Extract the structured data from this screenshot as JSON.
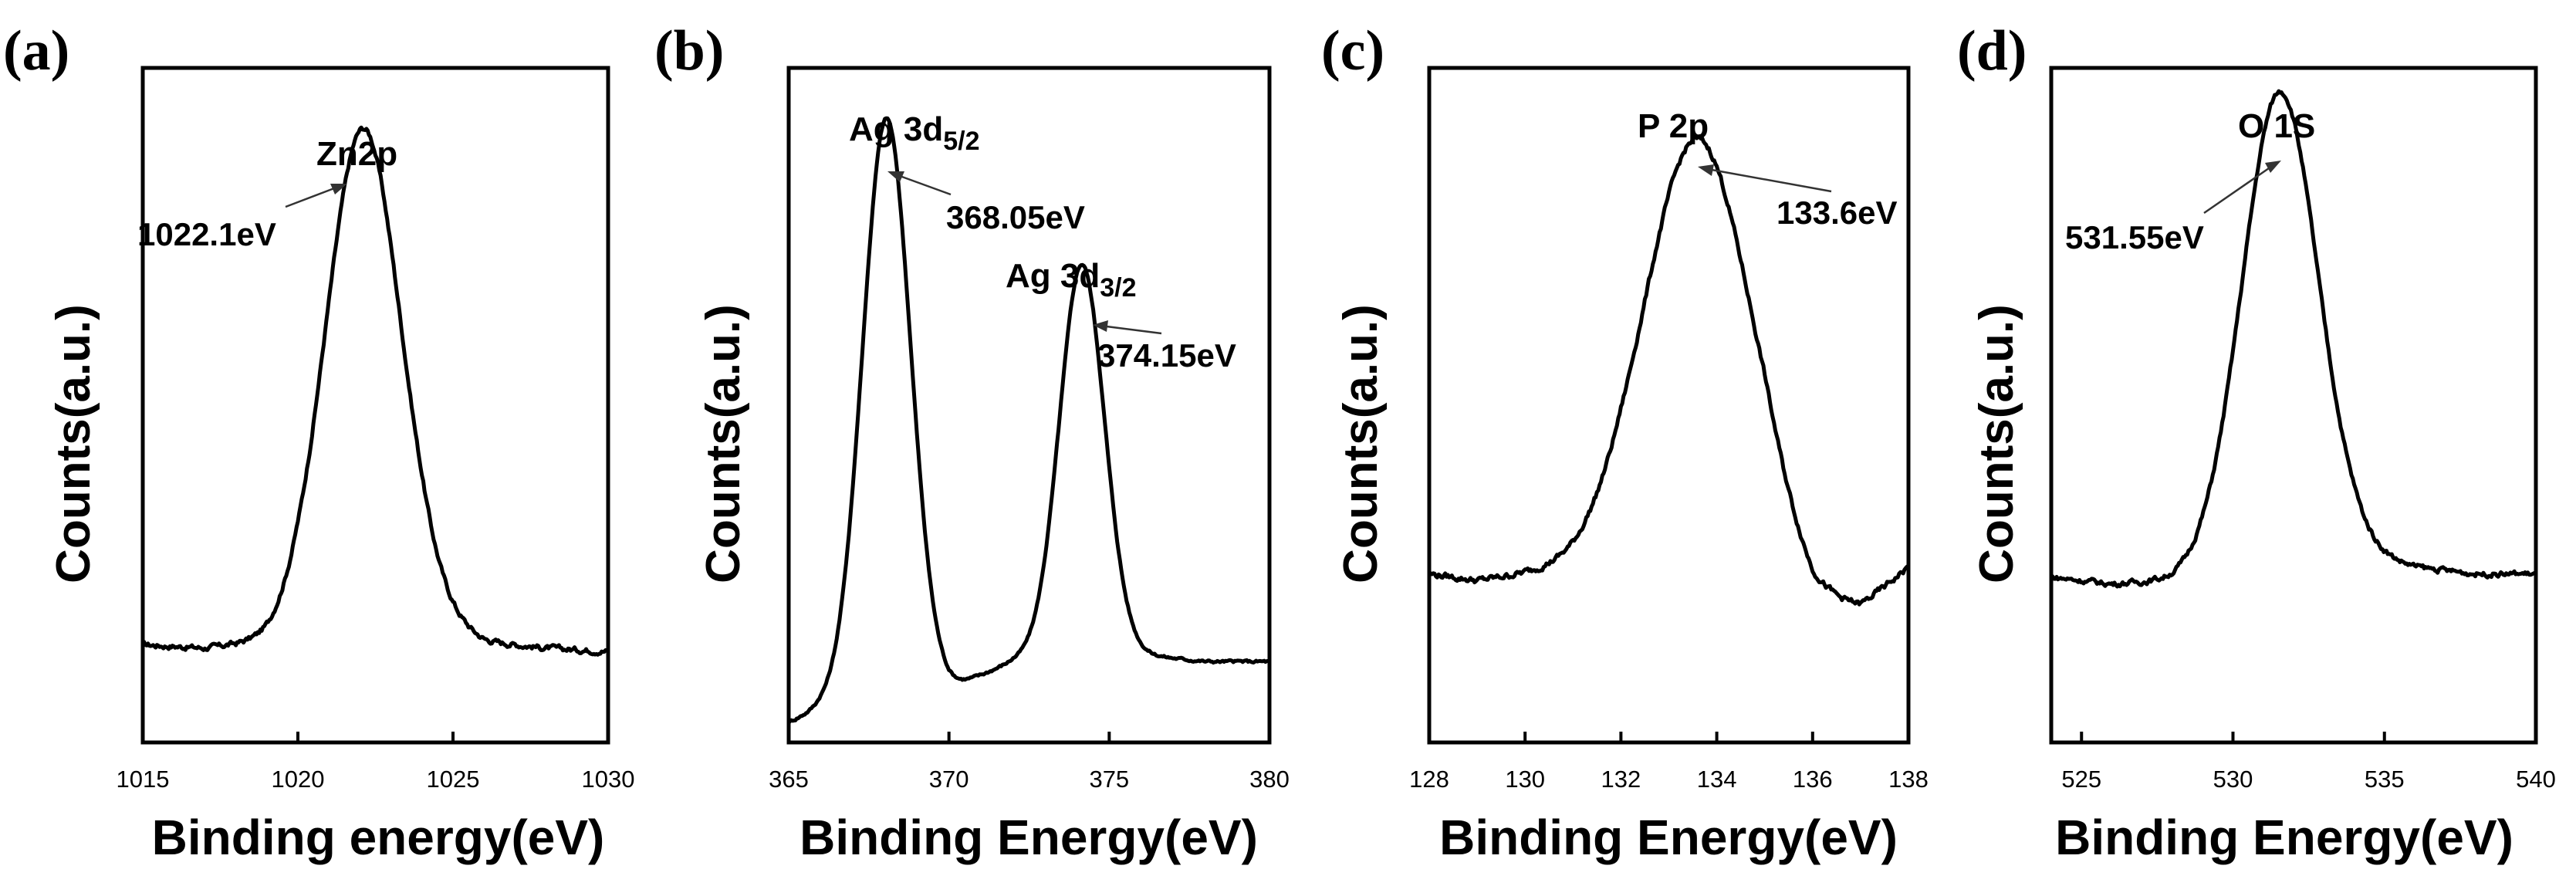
{
  "chart_data": [
    {
      "type": "line",
      "panel_label": "(a)",
      "xlabel": "Binding energy(eV)",
      "ylabel": "Counts(a.u.)",
      "xlim": [
        1015,
        1030
      ],
      "ylim": [
        0,
        1
      ],
      "xticks": [
        1015,
        1020,
        1025,
        1030
      ],
      "xtick_labels": [
        "1015",
        "1020",
        "1025",
        "1030"
      ],
      "series": [
        {
          "name": "Zn 2p",
          "background": [
            [
              1015,
              0.145
            ],
            [
              1017,
              0.14
            ],
            [
              1019,
              0.15
            ],
            [
              1020,
              0.17
            ],
            [
              1024,
              0.19
            ],
            [
              1026,
              0.15
            ],
            [
              1028,
              0.14
            ],
            [
              1030,
              0.135
            ]
          ],
          "noise": 0.008,
          "peaks": [
            {
              "center": 1022.1,
              "height": 0.73,
              "width": 1.2
            }
          ]
        }
      ],
      "annotations": [
        {
          "label": "Zn2p",
          "value": "1022.1eV",
          "x": 1022.1
        }
      ]
    },
    {
      "type": "line",
      "panel_label": "(b)",
      "xlabel": "Binding Energy(eV)",
      "ylabel": "Counts(a.u.)",
      "xlim": [
        365,
        380
      ],
      "ylim": [
        0,
        1
      ],
      "xticks": [
        365,
        370,
        375,
        380
      ],
      "xtick_labels": [
        "365",
        "370",
        "375",
        "380"
      ],
      "series": [
        {
          "name": "Ag 3d",
          "background": [
            [
              365,
              0.03
            ],
            [
              366,
              0.05
            ],
            [
              370,
              0.08
            ],
            [
              372,
              0.12
            ],
            [
              374,
              0.14
            ],
            [
              376,
              0.13
            ],
            [
              378,
              0.12
            ],
            [
              380,
              0.12
            ]
          ],
          "noise": 0.004,
          "peaks": [
            {
              "center": 368.05,
              "height": 0.86,
              "width": 0.75
            },
            {
              "center": 374.15,
              "height": 0.57,
              "width": 0.7
            }
          ]
        }
      ],
      "annotations": [
        {
          "label_main": "Ag 3d",
          "label_sub": "5/2",
          "value": "368.05eV",
          "x": 368.05
        },
        {
          "label_main": "Ag 3d",
          "label_sub": "3/2",
          "value": "374.15eV",
          "x": 374.15
        }
      ]
    },
    {
      "type": "line",
      "panel_label": "(c)",
      "xlabel": "Binding Energy(eV)",
      "ylabel": "Counts(a.u.)",
      "xlim": [
        128,
        138
      ],
      "ylim": [
        0,
        1
      ],
      "xticks": [
        128,
        130,
        132,
        134,
        136,
        138
      ],
      "xtick_labels": [
        "128",
        "130",
        "132",
        "134",
        "136",
        "138"
      ],
      "series": [
        {
          "name": "P 2p",
          "background": [
            [
              128,
              0.25
            ],
            [
              129,
              0.24
            ],
            [
              130,
              0.25
            ],
            [
              131,
              0.26
            ],
            [
              132,
              0.28
            ],
            [
              135,
              0.27
            ],
            [
              136,
              0.2
            ],
            [
              137,
              0.2
            ],
            [
              138,
              0.26
            ]
          ],
          "noise": 0.009,
          "peaks": [
            {
              "center": 133.6,
              "height": 0.62,
              "width": 1.1
            }
          ]
        }
      ],
      "annotations": [
        {
          "label": "P 2p",
          "value": "133.6eV",
          "x": 133.6
        }
      ]
    },
    {
      "type": "line",
      "panel_label": "(d)",
      "xlabel": "Binding Energy(eV)",
      "ylabel": "Counts(a.u.)",
      "xlim": [
        524,
        540
      ],
      "ylim": [
        0,
        1
      ],
      "xticks": [
        525,
        530,
        535,
        540
      ],
      "xtick_labels": [
        "525",
        "530",
        "535",
        "540"
      ],
      "series": [
        {
          "name": "O 1s",
          "background": [
            [
              524,
              0.245
            ],
            [
              526,
              0.235
            ],
            [
              528,
              0.24
            ],
            [
              529,
              0.25
            ],
            [
              534,
              0.28
            ],
            [
              536,
              0.26
            ],
            [
              538,
              0.25
            ],
            [
              540,
              0.25
            ]
          ],
          "noise": 0.008,
          "peaks": [
            {
              "center": 531.55,
              "height": 0.7,
              "width": 1.25
            }
          ]
        }
      ],
      "annotations": [
        {
          "label": "O 1S",
          "value": "531.55eV",
          "x": 531.55
        }
      ]
    }
  ]
}
